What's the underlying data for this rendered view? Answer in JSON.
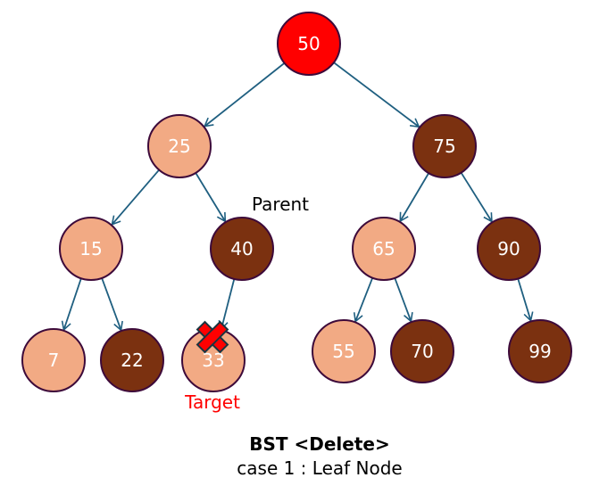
{
  "colors": {
    "root": "#ff0000",
    "light": "#f2aa84",
    "dark": "#7b3110",
    "border": "#3d0a3a",
    "edge": "#1f5f80",
    "mark": "#ff0000"
  },
  "nodes": [
    {
      "value": "50",
      "style": "root"
    },
    {
      "value": "25",
      "style": "light"
    },
    {
      "value": "75",
      "style": "dark"
    },
    {
      "value": "15",
      "style": "light"
    },
    {
      "value": "40",
      "style": "dark"
    },
    {
      "value": "65",
      "style": "light"
    },
    {
      "value": "90",
      "style": "dark"
    },
    {
      "value": "7",
      "style": "light"
    },
    {
      "value": "22",
      "style": "dark"
    },
    {
      "value": "33",
      "style": "light"
    },
    {
      "value": "55",
      "style": "light"
    },
    {
      "value": "70",
      "style": "dark"
    },
    {
      "value": "99",
      "style": "dark"
    }
  ],
  "edges": [
    [
      "50",
      "25"
    ],
    [
      "50",
      "75"
    ],
    [
      "25",
      "15"
    ],
    [
      "25",
      "40"
    ],
    [
      "75",
      "65"
    ],
    [
      "75",
      "90"
    ],
    [
      "15",
      "7"
    ],
    [
      "15",
      "22"
    ],
    [
      "40",
      "33"
    ],
    [
      "65",
      "55"
    ],
    [
      "65",
      "70"
    ],
    [
      "90",
      "99"
    ]
  ],
  "annotations": {
    "parent_label": "Parent",
    "target_label": "Target",
    "delete_mark_icon": "x-mark"
  },
  "caption": {
    "title": "BST <Delete>",
    "subtitle": "case 1 : Leaf Node"
  }
}
